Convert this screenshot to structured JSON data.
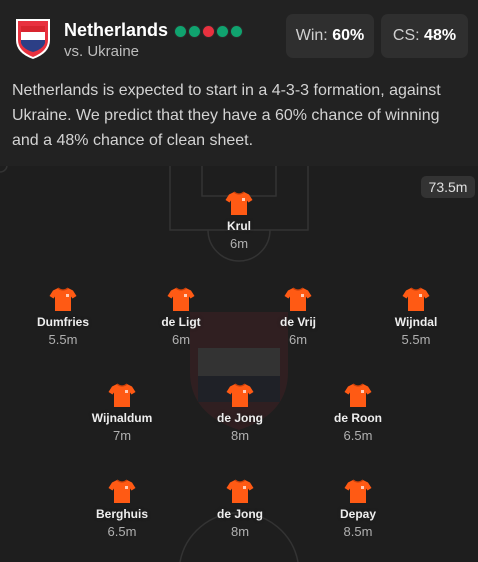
{
  "team": {
    "name": "Netherlands",
    "opponent": "vs. Ukraine",
    "form": [
      "#10a36f",
      "#10a36f",
      "#e8313f",
      "#10a36f",
      "#10a36f"
    ]
  },
  "stats": {
    "win_label": "Win:",
    "win_value": "60%",
    "cs_label": "CS:",
    "cs_value": "48%"
  },
  "summary": "Netherlands is expected to start in a 4-3-3 formation, against Ukraine. We predict that they have a 60% chance of winning and a 48% chance of clean sheet.",
  "pitch": {
    "total_value": "73.5m"
  },
  "colors": {
    "shirt": "#ff5a14",
    "accent_green": "#10a36f",
    "accent_red": "#e8313f"
  },
  "players": [
    {
      "name": "Krul",
      "price": "6m"
    },
    {
      "name": "Dumfries",
      "price": "5.5m"
    },
    {
      "name": "de Ligt",
      "price": "6m"
    },
    {
      "name": "de Vrij",
      "price": "6m"
    },
    {
      "name": "Wijndal",
      "price": "5.5m"
    },
    {
      "name": "Wijnaldum",
      "price": "7m"
    },
    {
      "name": "de Jong",
      "price": "8m"
    },
    {
      "name": "de Roon",
      "price": "6.5m"
    },
    {
      "name": "Berghuis",
      "price": "6.5m"
    },
    {
      "name": "de Jong",
      "price": "8m"
    },
    {
      "name": "Depay",
      "price": "8.5m"
    }
  ]
}
